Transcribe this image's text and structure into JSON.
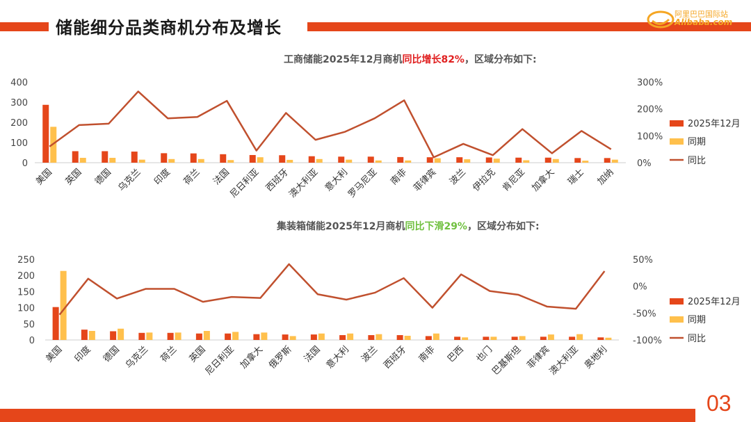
{
  "header": {
    "title": "储能细分品类商机分布及增长"
  },
  "logo": {
    "cn": "阿里巴巴国际站",
    "en": "Alibaba.com",
    "icon": "alibaba-smile-logo"
  },
  "footer": {
    "page_number": "03"
  },
  "colors": {
    "current": "#E5461A",
    "previous": "#FFC04C",
    "yoy": "#C0502E",
    "accent_red": "#E02020",
    "accent_green": "#70C040"
  },
  "chart_data": [
    {
      "type": "bar",
      "title_prefix": "工商储能2025年12月商机",
      "title_highlight": "同比增长82%",
      "title_suffix": "，区域分布如下:",
      "categories": [
        "美国",
        "英国",
        "德国",
        "乌克兰",
        "印度",
        "荷兰",
        "法国",
        "尼日利亚",
        "西班牙",
        "澳大利亚",
        "意大利",
        "罗马尼亚",
        "南非",
        "菲律宾",
        "波兰",
        "伊拉克",
        "肯尼亚",
        "加拿大",
        "瑞士",
        "加纳"
      ],
      "series": [
        {
          "name": "2025年12月",
          "type": "bar",
          "axis": "left",
          "values": [
            287,
            57,
            57,
            55,
            47,
            46,
            42,
            38,
            37,
            32,
            30,
            30,
            28,
            27,
            27,
            26,
            25,
            25,
            23,
            23
          ]
        },
        {
          "name": "同期",
          "type": "bar",
          "axis": "left",
          "values": [
            178,
            24,
            24,
            15,
            18,
            18,
            13,
            27,
            14,
            18,
            15,
            11,
            11,
            22,
            17,
            20,
            12,
            18,
            10,
            15
          ]
        },
        {
          "name": "同比",
          "type": "line",
          "axis": "right",
          "values": [
            60,
            140,
            145,
            265,
            165,
            170,
            230,
            45,
            185,
            85,
            115,
            165,
            232,
            20,
            70,
            28,
            125,
            35,
            118,
            50
          ]
        }
      ],
      "y_left": {
        "ticks": [
          "0",
          "100",
          "200",
          "300",
          "400"
        ],
        "range": [
          0,
          400
        ]
      },
      "y_right": {
        "ticks": [
          "0%",
          "100%",
          "200%",
          "300%"
        ],
        "range": [
          0,
          300
        ]
      },
      "legend_position": "right"
    },
    {
      "type": "bar",
      "title_prefix": "集装箱储能2025年12月商机",
      "title_highlight": "同比下滑29%",
      "title_suffix": "，区域分布如下:",
      "categories": [
        "美国",
        "印度",
        "德国",
        "乌克兰",
        "荷兰",
        "英国",
        "尼日利亚",
        "加拿大",
        "俄罗斯",
        "法国",
        "意大利",
        "波兰",
        "西班牙",
        "南非",
        "巴西",
        "也门",
        "巴基斯坦",
        "菲律宾",
        "澳大利亚",
        "奥地利"
      ],
      "series": [
        {
          "name": "2025年12月",
          "type": "bar",
          "axis": "left",
          "values": [
            102,
            32,
            27,
            22,
            22,
            20,
            20,
            18,
            17,
            17,
            15,
            15,
            15,
            12,
            10,
            10,
            10,
            10,
            10,
            8
          ]
        },
        {
          "name": "同期",
          "type": "bar",
          "axis": "left",
          "values": [
            214,
            28,
            35,
            23,
            23,
            28,
            25,
            23,
            12,
            20,
            20,
            18,
            13,
            20,
            8,
            10,
            12,
            17,
            18,
            7
          ]
        },
        {
          "name": "同比",
          "type": "line",
          "axis": "right",
          "values": [
            -53,
            14,
            -23,
            -5,
            -5,
            -29,
            -20,
            -22,
            41,
            -15,
            -25,
            -12,
            15,
            -40,
            22,
            -9,
            -16,
            -38,
            -42,
            28
          ]
        }
      ],
      "y_left": {
        "ticks": [
          "0",
          "50",
          "100",
          "150",
          "200",
          "250"
        ],
        "range": [
          0,
          250
        ]
      },
      "y_right": {
        "ticks": [
          "-100%",
          "-50%",
          "0%",
          "50%"
        ],
        "range": [
          -100,
          50
        ]
      },
      "legend_position": "right"
    }
  ]
}
